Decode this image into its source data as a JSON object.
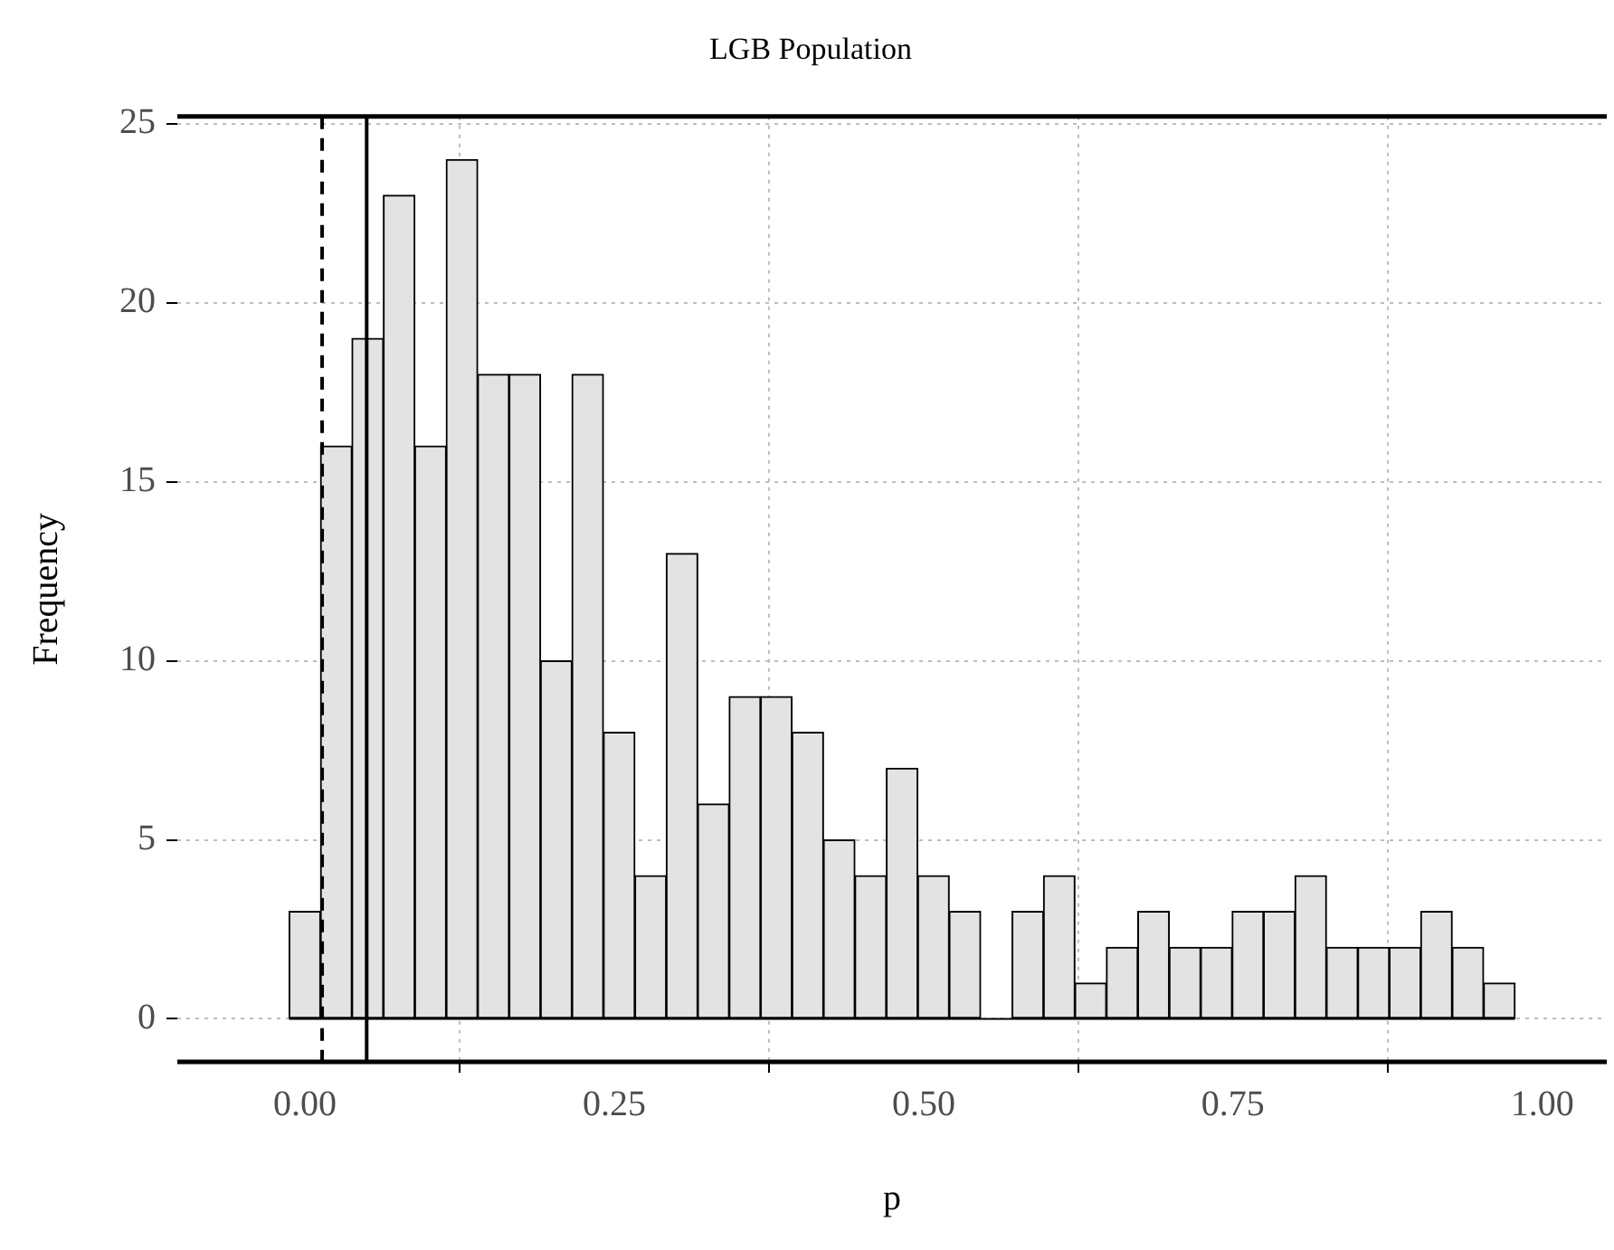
{
  "chart_data": {
    "type": "histogram",
    "title": "LGB Population",
    "xlabel": "p",
    "ylabel": "Frequency",
    "bins": [
      -0.0127,
      0.0127,
      0.0381,
      0.0635,
      0.0889,
      0.1143,
      0.1397,
      0.1651,
      0.1905,
      0.2159,
      0.2413,
      0.2667,
      0.2921,
      0.3175,
      0.3429,
      0.3683,
      0.3937,
      0.4191,
      0.4445,
      0.4699,
      0.4953,
      0.5207,
      0.5461,
      0.5715,
      0.5969,
      0.6223,
      0.6477,
      0.6731,
      0.6985,
      0.7239,
      0.7493,
      0.7747,
      0.8001,
      0.8255,
      0.8509,
      0.8763,
      0.9017,
      0.9271,
      0.9525,
      0.9779
    ],
    "values": [
      3,
      16,
      19,
      23,
      16,
      24,
      18,
      18,
      10,
      18,
      8,
      4,
      13,
      6,
      9,
      9,
      8,
      5,
      4,
      7,
      4,
      3,
      0,
      3,
      4,
      1,
      2,
      3,
      2,
      2,
      3,
      3,
      4,
      2,
      2,
      2,
      3,
      2,
      1
    ],
    "color": "#e3e3e3",
    "xlim": [
      -0.103,
      1.052
    ],
    "xticks": [
      {
        "value": 0,
        "label": "0.00"
      },
      {
        "value": 0.25,
        "label": "0.25"
      },
      {
        "value": 0.5,
        "label": "0.50"
      },
      {
        "value": 0.75,
        "label": "0.75"
      },
      {
        "value": 1,
        "label": "1.00"
      }
    ],
    "ylim": [
      -1.2,
      25.2
    ],
    "yticks": [
      0,
      5,
      10,
      15,
      20,
      25
    ],
    "ref_lines": [
      {
        "axis": "x",
        "value": 0.014,
        "color": "#000000",
        "line_style": "dashed"
      },
      {
        "axis": "x",
        "value": 0.05,
        "color": "#000000",
        "line_style": "solid"
      }
    ],
    "grid": true,
    "legend": false
  }
}
